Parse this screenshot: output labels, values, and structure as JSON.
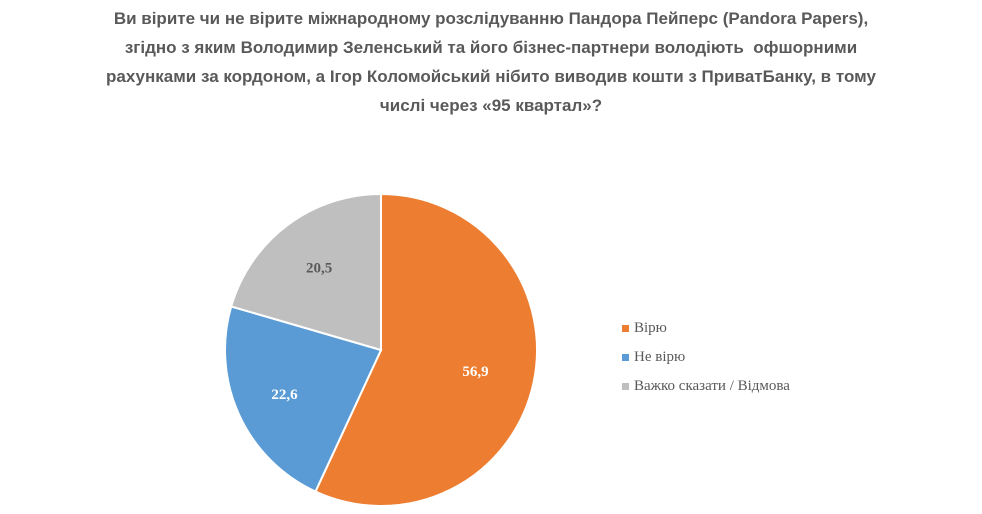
{
  "chart_data": {
    "type": "pie",
    "title_lines": [
      "Ви вірите чи не вірите міжнародному розслідуванню Пандора Пейперс (Pandora Papers),",
      "згідно з яким Володимир Зеленський та його бізнес-партнери володіють  офшорними",
      "рахунками за кордоном, а Ігор Коломойський нібито виводив кошти з ПриватБанку, в тому",
      "числі через «95 квартал»?"
    ],
    "categories": [
      "Вірю",
      "Не вірю",
      "Важко сказати / Відмова"
    ],
    "values": [
      56.9,
      22.6,
      20.5
    ],
    "labels": [
      "56,9",
      "22,6",
      "20,5"
    ],
    "colors": [
      "#ED7D31",
      "#5B9BD5",
      "#BFBFBF"
    ],
    "label_colors": [
      "#FFFFFF",
      "#FFFFFF",
      "#595959"
    ],
    "start_angle": "top, clockwise",
    "legend_position": "right"
  }
}
